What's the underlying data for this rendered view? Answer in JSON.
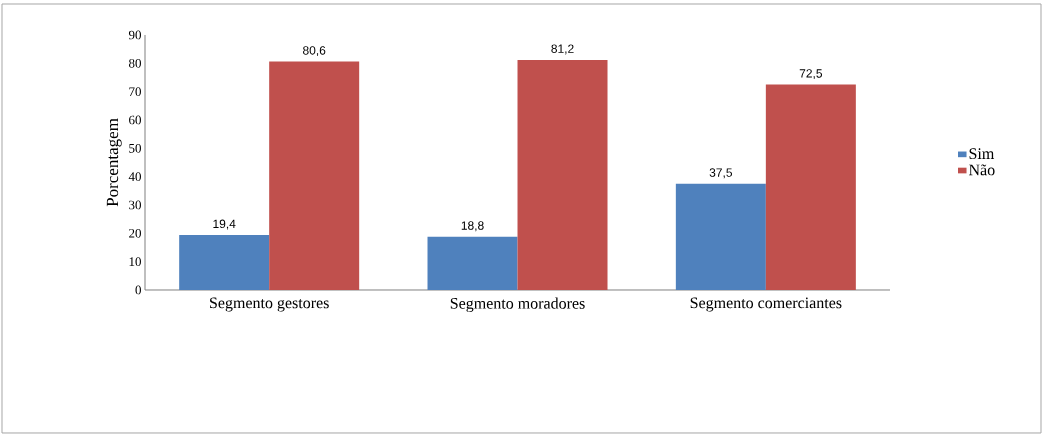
{
  "chart_data": {
    "type": "bar",
    "ylabel": "Porcentagem",
    "categories": [
      "Segmento gestores",
      "Segmento moradores",
      "Segmento comerciantes"
    ],
    "series": [
      {
        "name": "Sim",
        "color": "#4f81bd",
        "values": [
          19.4,
          18.8,
          37.5
        ],
        "value_labels": [
          "19,4",
          "18,8",
          "37,5"
        ]
      },
      {
        "name": "Não",
        "color": "#c0504d",
        "values": [
          80.6,
          81.2,
          72.5
        ],
        "value_labels": [
          "80,6",
          "81,2",
          "72,5"
        ]
      }
    ],
    "ylim": [
      0,
      90
    ],
    "yticks": [
      0,
      10,
      20,
      30,
      40,
      50,
      60,
      70,
      80,
      90
    ],
    "grid": false,
    "legend": "right"
  }
}
